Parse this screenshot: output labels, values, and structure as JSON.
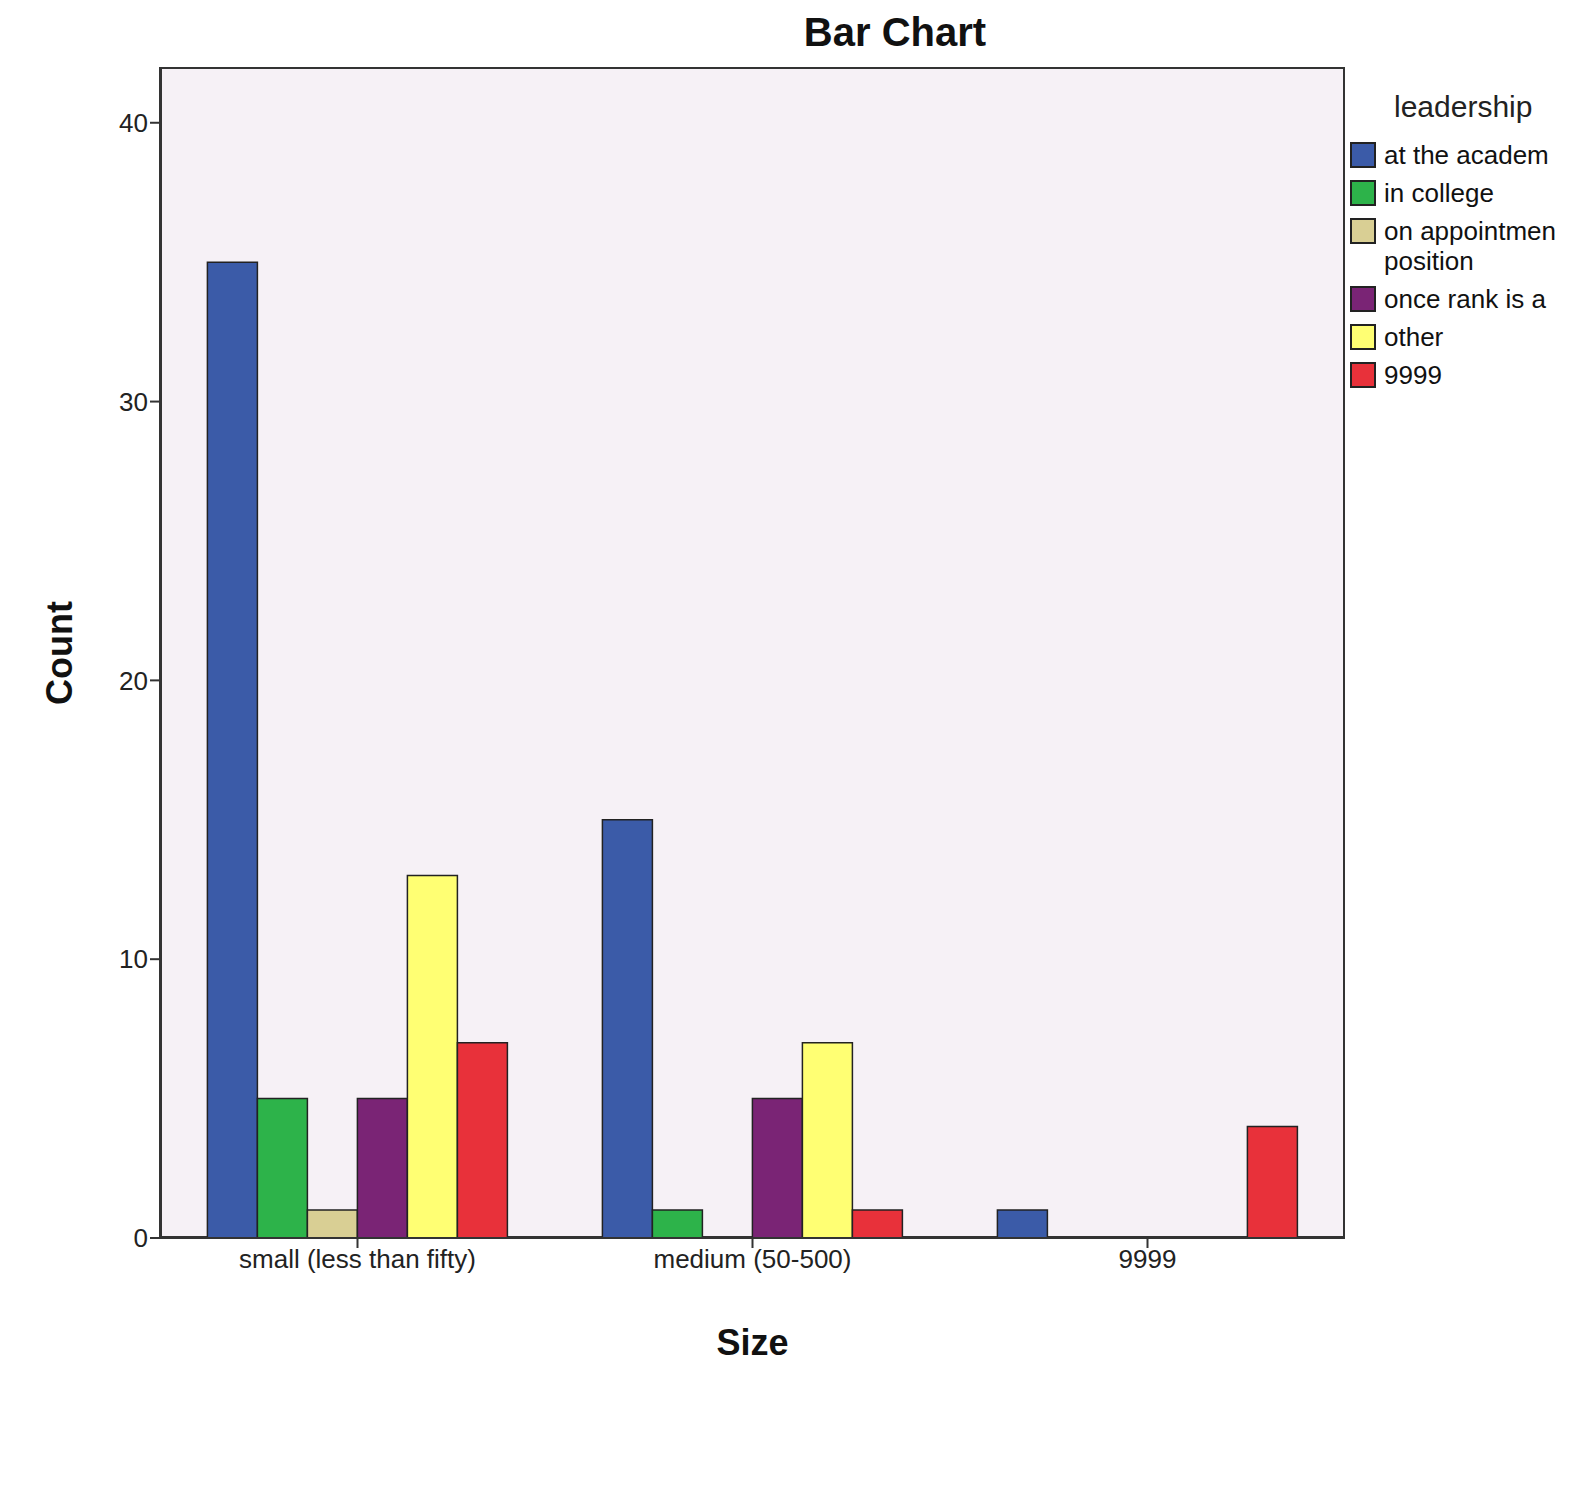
{
  "chart_data": {
    "type": "bar",
    "title": "Bar Chart",
    "x_label": "Size",
    "y_label": "Count",
    "legend_title": "leadership",
    "categories": [
      "small (less than fifty)",
      "medium (50-500)",
      "9999"
    ],
    "series": [
      {
        "name": "at the academ",
        "color": "#3b5ba8",
        "values": [
          35,
          15,
          1
        ]
      },
      {
        "name": "in college",
        "color": "#2db34a",
        "values": [
          5,
          1,
          0
        ]
      },
      {
        "name": "on appointmen position",
        "color": "#d9cf94",
        "values": [
          1,
          0,
          0
        ]
      },
      {
        "name": "once rank is a",
        "color": "#7a2475",
        "values": [
          5,
          5,
          0
        ]
      },
      {
        "name": "other",
        "color": "#ffff73",
        "values": [
          13,
          7,
          0
        ]
      },
      {
        "name": "9999",
        "color": "#e8313a",
        "values": [
          7,
          1,
          4
        ]
      }
    ],
    "ylim": [
      0,
      42
    ],
    "yticks": [
      0,
      10,
      20,
      30,
      40
    ],
    "grid": false,
    "legend": "right"
  }
}
